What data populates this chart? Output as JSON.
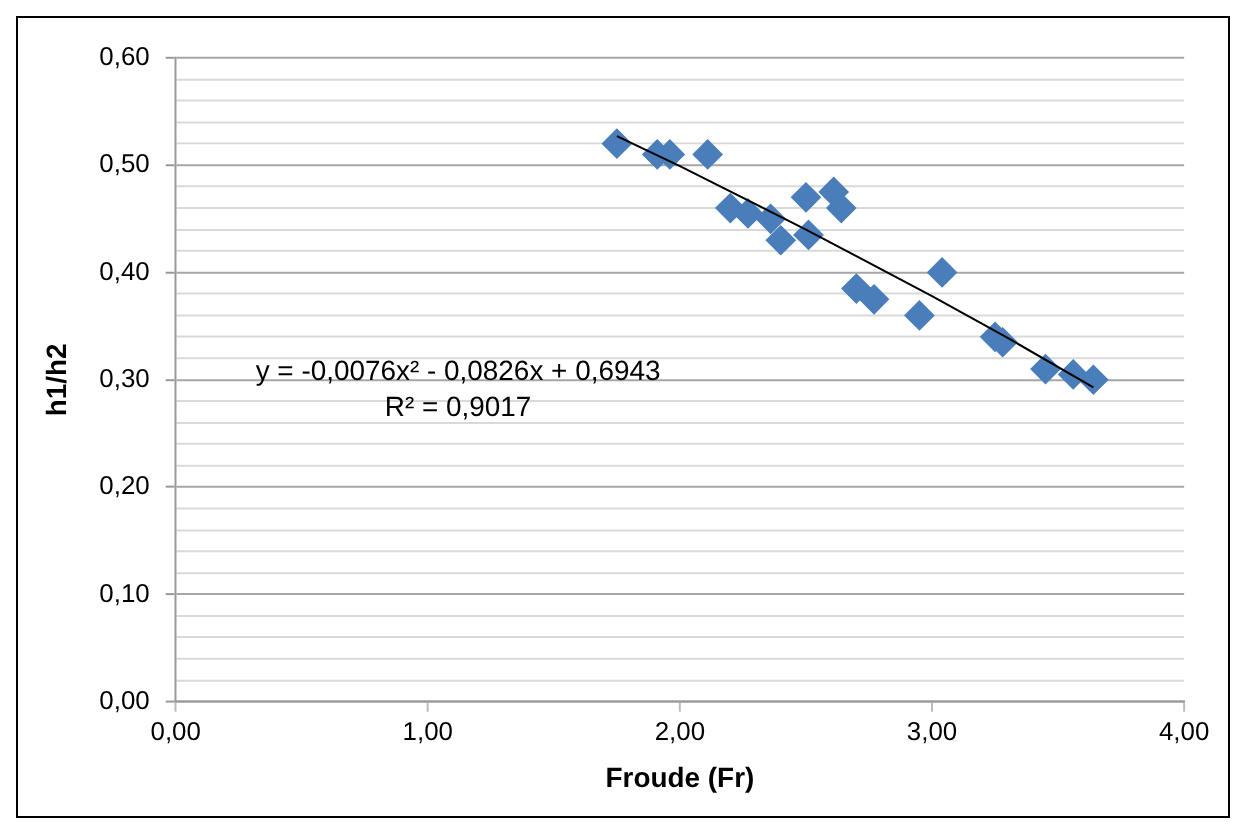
{
  "chart_data": {
    "type": "scatter",
    "xlabel": "Froude (Fr)",
    "ylabel": "h1/h2",
    "annotations": [
      "y = -0,0076x² - 0,0826x + 0,6943",
      "R² = 0,9017"
    ],
    "xlim": [
      0,
      4
    ],
    "ylim": [
      0,
      0.6
    ],
    "xticks": [
      {
        "value": 0,
        "label": "0,00"
      },
      {
        "value": 1,
        "label": "1,00"
      },
      {
        "value": 2,
        "label": "2,00"
      },
      {
        "value": 3,
        "label": "3,00"
      },
      {
        "value": 4,
        "label": "4,00"
      }
    ],
    "yticks": [
      {
        "value": 0,
        "label": "0,00"
      },
      {
        "value": 0.02,
        "label": null
      },
      {
        "value": 0.04,
        "label": null
      },
      {
        "value": 0.06,
        "label": null
      },
      {
        "value": 0.08,
        "label": null
      },
      {
        "value": 0.1,
        "label": "0,10"
      },
      {
        "value": 0.12,
        "label": null
      },
      {
        "value": 0.14,
        "label": null
      },
      {
        "value": 0.16,
        "label": null
      },
      {
        "value": 0.18,
        "label": null
      },
      {
        "value": 0.2,
        "label": "0,20"
      },
      {
        "value": 0.22,
        "label": null
      },
      {
        "value": 0.24,
        "label": null
      },
      {
        "value": 0.26,
        "label": null
      },
      {
        "value": 0.28,
        "label": null
      },
      {
        "value": 0.3,
        "label": "0,30"
      },
      {
        "value": 0.32,
        "label": null
      },
      {
        "value": 0.34,
        "label": null
      },
      {
        "value": 0.36,
        "label": null
      },
      {
        "value": 0.38,
        "label": null
      },
      {
        "value": 0.4,
        "label": "0,40"
      },
      {
        "value": 0.42,
        "label": null
      },
      {
        "value": 0.44,
        "label": null
      },
      {
        "value": 0.46,
        "label": null
      },
      {
        "value": 0.48,
        "label": null
      },
      {
        "value": 0.5,
        "label": "0,50"
      },
      {
        "value": 0.52,
        "label": null
      },
      {
        "value": 0.54,
        "label": null
      },
      {
        "value": 0.56,
        "label": null
      },
      {
        "value": 0.58,
        "label": null
      },
      {
        "value": 0.6,
        "label": "0,60"
      }
    ],
    "grid": "y",
    "legend": false,
    "marker": "diamond",
    "series": [
      {
        "color": "#4a7ebb",
        "x": [
          1.75,
          1.91,
          1.96,
          2.11,
          2.2,
          2.27,
          2.36,
          2.4,
          2.5,
          2.51,
          2.61,
          2.64,
          2.7,
          2.77,
          2.95,
          3.04,
          3.25,
          3.28,
          3.45,
          3.56,
          3.64
        ],
        "values": [
          0.52,
          0.51,
          0.51,
          0.51,
          0.46,
          0.455,
          0.45,
          0.43,
          0.47,
          0.435,
          0.475,
          0.46,
          0.385,
          0.375,
          0.36,
          0.4,
          0.34,
          0.335,
          0.31,
          0.305,
          0.3
        ]
      },
      {
        "type": "line",
        "marker": "none",
        "color": "#000000",
        "x": [
          1.75,
          2.0,
          2.5,
          3.0,
          3.3,
          3.64
        ],
        "values": [
          0.527,
          0.499,
          0.44,
          0.378,
          0.339,
          0.293
        ]
      }
    ]
  }
}
